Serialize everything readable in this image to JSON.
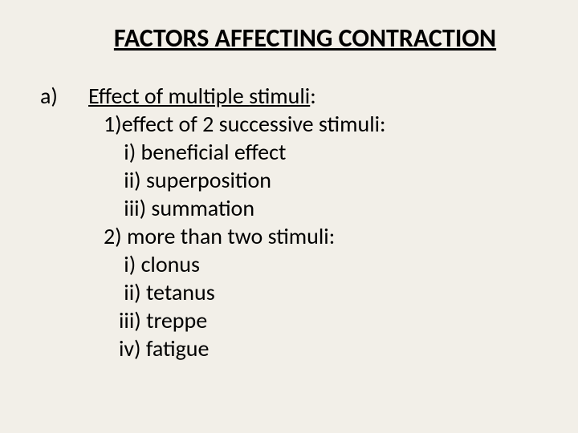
{
  "title": "FACTORS AFFECTING CONTRACTION",
  "marker": "a)",
  "lines": {
    "l1a": "Effect of multiple ",
    "l1b": "stimuli",
    "l1c": ":",
    "l2": "   1)effect of 2 successive stimuli:",
    "l3": "       i) beneficial effect",
    "l4": "       ii) superposition",
    "l5": "       iii) summation",
    "l6": "   2) more than two stimuli:",
    "l7": "       i) ",
    "l7b": "clonus",
    "l8": "       ii) tetanus",
    "l9": "      iii) ",
    "l9b": "treppe",
    "l10": "      iv) fatigue"
  },
  "colors": {
    "background": "#f2efe8",
    "text": "#000000"
  },
  "typography": {
    "title_fontsize": 32,
    "body_fontsize": 28,
    "font_family": "Calibri"
  }
}
